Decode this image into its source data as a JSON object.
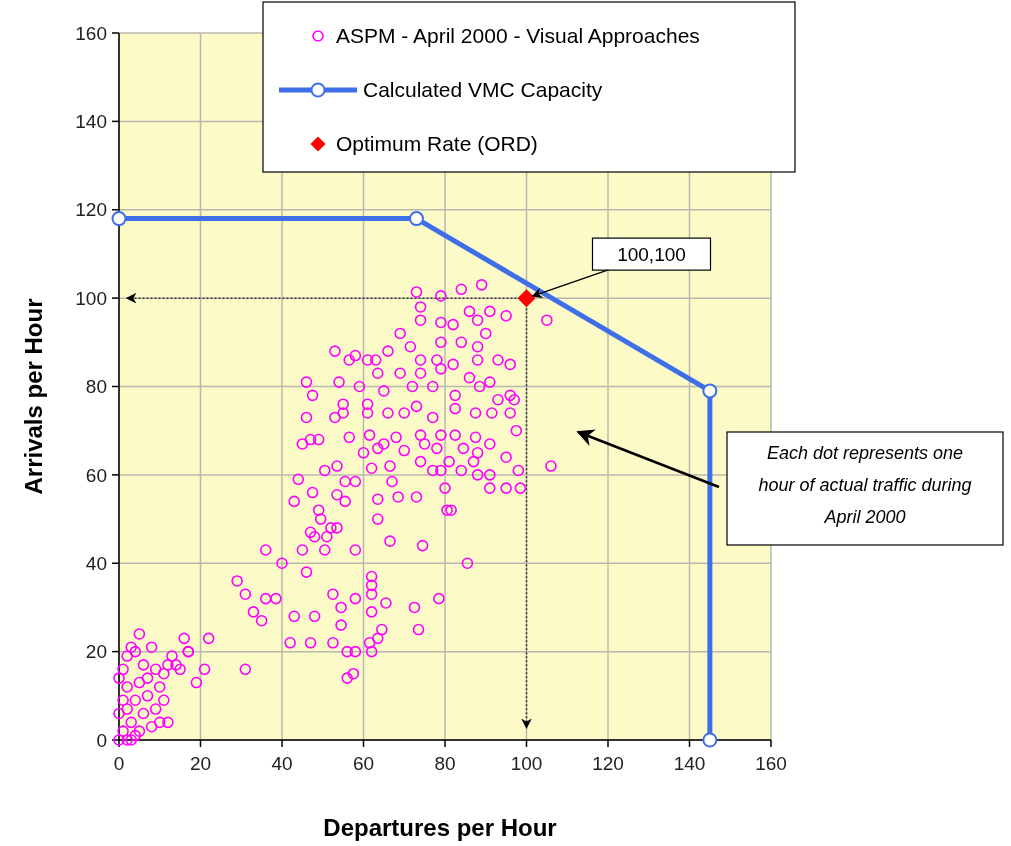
{
  "chart_data": {
    "type": "scatter",
    "xlabel": "Departures per Hour",
    "ylabel": "Arrivals per Hour",
    "xlim": [
      0,
      160
    ],
    "xticks": [
      0,
      20,
      40,
      60,
      80,
      100,
      120,
      140,
      160
    ],
    "ylim": [
      0,
      160
    ],
    "yticks": [
      0,
      20,
      40,
      60,
      80,
      100,
      120,
      140,
      160
    ],
    "grid": true,
    "legend": "top right",
    "series": [
      {
        "name": "ASPM - April 2000 - Visual Approaches",
        "marker": "circle",
        "color": "#ff00ff",
        "x": [
          0,
          1,
          2,
          3,
          0,
          1,
          2,
          0,
          1,
          2,
          3,
          5,
          4,
          6,
          5,
          7,
          6,
          8,
          9,
          10,
          11,
          12,
          13,
          14,
          15,
          17,
          3,
          5,
          4,
          7,
          8,
          10,
          12,
          4,
          2,
          9,
          11,
          29,
          31,
          33,
          35,
          36,
          38.5,
          40,
          16,
          22,
          21,
          31,
          19,
          17,
          36,
          42,
          43,
          47,
          48,
          46,
          45,
          52.5,
          52.5,
          54.5,
          54.5,
          56,
          58,
          56,
          57.5,
          58,
          58,
          61.5,
          62,
          63.5,
          64.5,
          62,
          62,
          62,
          62,
          65.5,
          66.5,
          63.5,
          74.5,
          72.5,
          73.5,
          78.5,
          85.5,
          81.5,
          49,
          49.5,
          47,
          48,
          50.5,
          51,
          52,
          53.5,
          73,
          79,
          84,
          89,
          74,
          74,
          86,
          91,
          95,
          105,
          69,
          79,
          82,
          88,
          90,
          53,
          58,
          66,
          71.5,
          79,
          84,
          88,
          56.5,
          61,
          63,
          74,
          78,
          82,
          88,
          93,
          96,
          46,
          47.5,
          46,
          53,
          54,
          59,
          63.5,
          69,
          74,
          79,
          86,
          91,
          55,
          61,
          65,
          72,
          77,
          82.5,
          88.5,
          93,
          96,
          97,
          55,
          61,
          66,
          70,
          73,
          77,
          82.5,
          87.5,
          91.5,
          96,
          97.5,
          106,
          45,
          47,
          49,
          56.5,
          61.5,
          65,
          68,
          74,
          79,
          82.5,
          87.5,
          91,
          95,
          60,
          63.5,
          70,
          75,
          78,
          84.5,
          88,
          44,
          43,
          47.5,
          50.5,
          53.5,
          55.5,
          58,
          62,
          66.5,
          67,
          63.5,
          55.5,
          53.5,
          68.5,
          73,
          74,
          77,
          79,
          81,
          80,
          80.5,
          84,
          88,
          91,
          91,
          95,
          98.5,
          98,
          87
        ],
        "values": [
          0,
          2,
          0,
          4,
          6,
          9,
          12,
          14,
          16,
          19,
          21,
          24,
          20,
          17,
          13,
          10,
          6,
          3,
          7,
          12,
          15,
          17,
          19,
          17,
          16,
          20,
          0,
          2,
          9,
          14,
          21,
          4,
          4,
          1,
          7,
          16,
          9,
          36,
          33,
          29,
          27,
          32,
          32,
          40,
          23,
          23,
          16,
          16,
          13,
          20,
          43,
          22,
          28,
          22,
          28,
          38,
          43,
          33,
          22,
          30,
          26,
          20,
          20,
          14,
          15,
          32,
          43,
          22,
          20,
          23,
          25,
          29,
          35,
          37,
          33,
          31,
          45,
          50,
          44,
          30,
          25,
          32,
          40,
          52,
          52,
          50,
          47,
          46,
          43,
          46,
          48,
          48,
          101.4,
          100.5,
          102,
          103,
          98,
          95,
          97,
          97,
          96,
          95,
          92,
          94.5,
          94,
          95,
          92,
          88,
          87,
          88,
          89,
          90,
          90,
          89,
          86,
          86,
          86,
          86,
          86,
          85,
          86,
          86,
          85,
          81,
          78,
          73,
          73,
          81,
          80,
          83,
          83,
          83,
          84,
          82,
          81,
          76,
          76,
          79,
          80,
          80,
          78,
          80,
          77,
          78,
          77,
          74,
          74,
          74,
          74,
          75.5,
          73,
          75,
          74,
          74,
          74,
          70,
          62,
          67,
          68,
          68,
          68.5,
          69,
          67,
          68.5,
          69,
          69,
          69,
          68.5,
          67,
          64,
          65,
          66,
          65.5,
          67,
          66,
          66,
          65,
          59,
          54,
          56,
          61,
          62,
          58.5,
          58.5,
          61.5,
          62,
          58.5,
          54.5,
          54,
          55.5,
          55,
          55,
          63,
          61,
          61,
          63,
          57,
          52,
          61,
          60,
          60,
          57,
          57,
          57,
          61,
          63
        ]
      },
      {
        "name": "Calculated VMC Capacity",
        "type": "line",
        "marker": "circle",
        "line_style": "solid",
        "color": "#3f6fe8",
        "x": [
          0,
          73,
          145,
          145
        ],
        "values": [
          118,
          118,
          79,
          0
        ]
      },
      {
        "name": "Optimum Rate (ORD)",
        "marker": "diamond",
        "color": "#ff0000",
        "x": [
          100
        ],
        "values": [
          100
        ]
      }
    ],
    "annotations": [
      {
        "text": "100,100",
        "x": 100,
        "y": 100
      },
      "Each dot represents one hour of actual traffic during April 2000"
    ]
  }
}
